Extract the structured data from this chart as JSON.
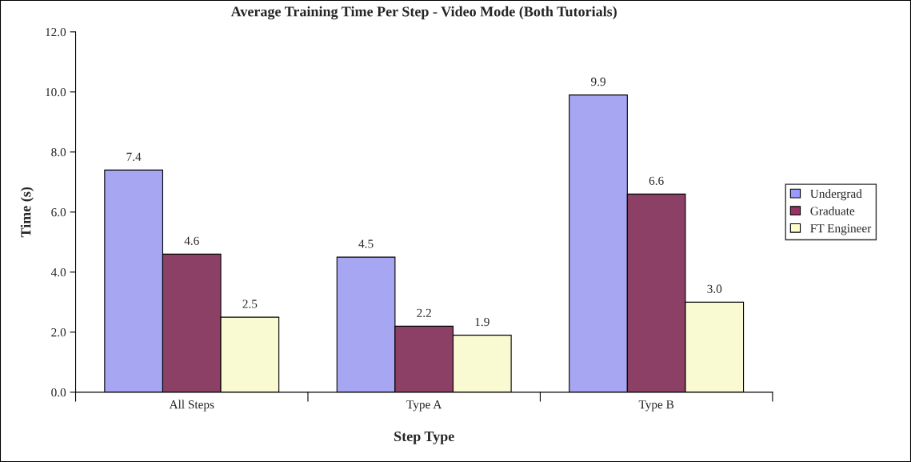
{
  "chart_data": {
    "type": "bar",
    "title": "Average Training Time Per Step - Video Mode (Both Tutorials)",
    "xlabel": "Step Type",
    "ylabel": "Time (s)",
    "categories": [
      "All Steps",
      "Type A",
      "Type B"
    ],
    "series": [
      {
        "name": "Undergrad",
        "color": "#9999ff",
        "values": [
          7.4,
          4.5,
          9.9
        ],
        "value_labels": [
          "7.4",
          "4.5",
          "9.9"
        ]
      },
      {
        "name": "Graduate",
        "color": "#993366",
        "values": [
          4.6,
          2.2,
          6.6
        ],
        "value_labels": [
          "4.6",
          "2.2",
          "6.6"
        ]
      },
      {
        "name": "FT Engineer",
        "color": "#ffffcc",
        "values": [
          2.5,
          1.9,
          3.0
        ],
        "value_labels": [
          "2.5",
          "1.9",
          "3.0"
        ]
      }
    ],
    "ylim": [
      0,
      12
    ],
    "yticks": [
      {
        "value": 0,
        "label": "0.0"
      },
      {
        "value": 2,
        "label": "2.0"
      },
      {
        "value": 4,
        "label": "4.0"
      },
      {
        "value": 6,
        "label": "6.0"
      },
      {
        "value": 8,
        "label": "8.0"
      },
      {
        "value": 10,
        "label": "10.0"
      },
      {
        "value": 12,
        "label": "12.0"
      }
    ],
    "grid": false,
    "legend": "right"
  }
}
